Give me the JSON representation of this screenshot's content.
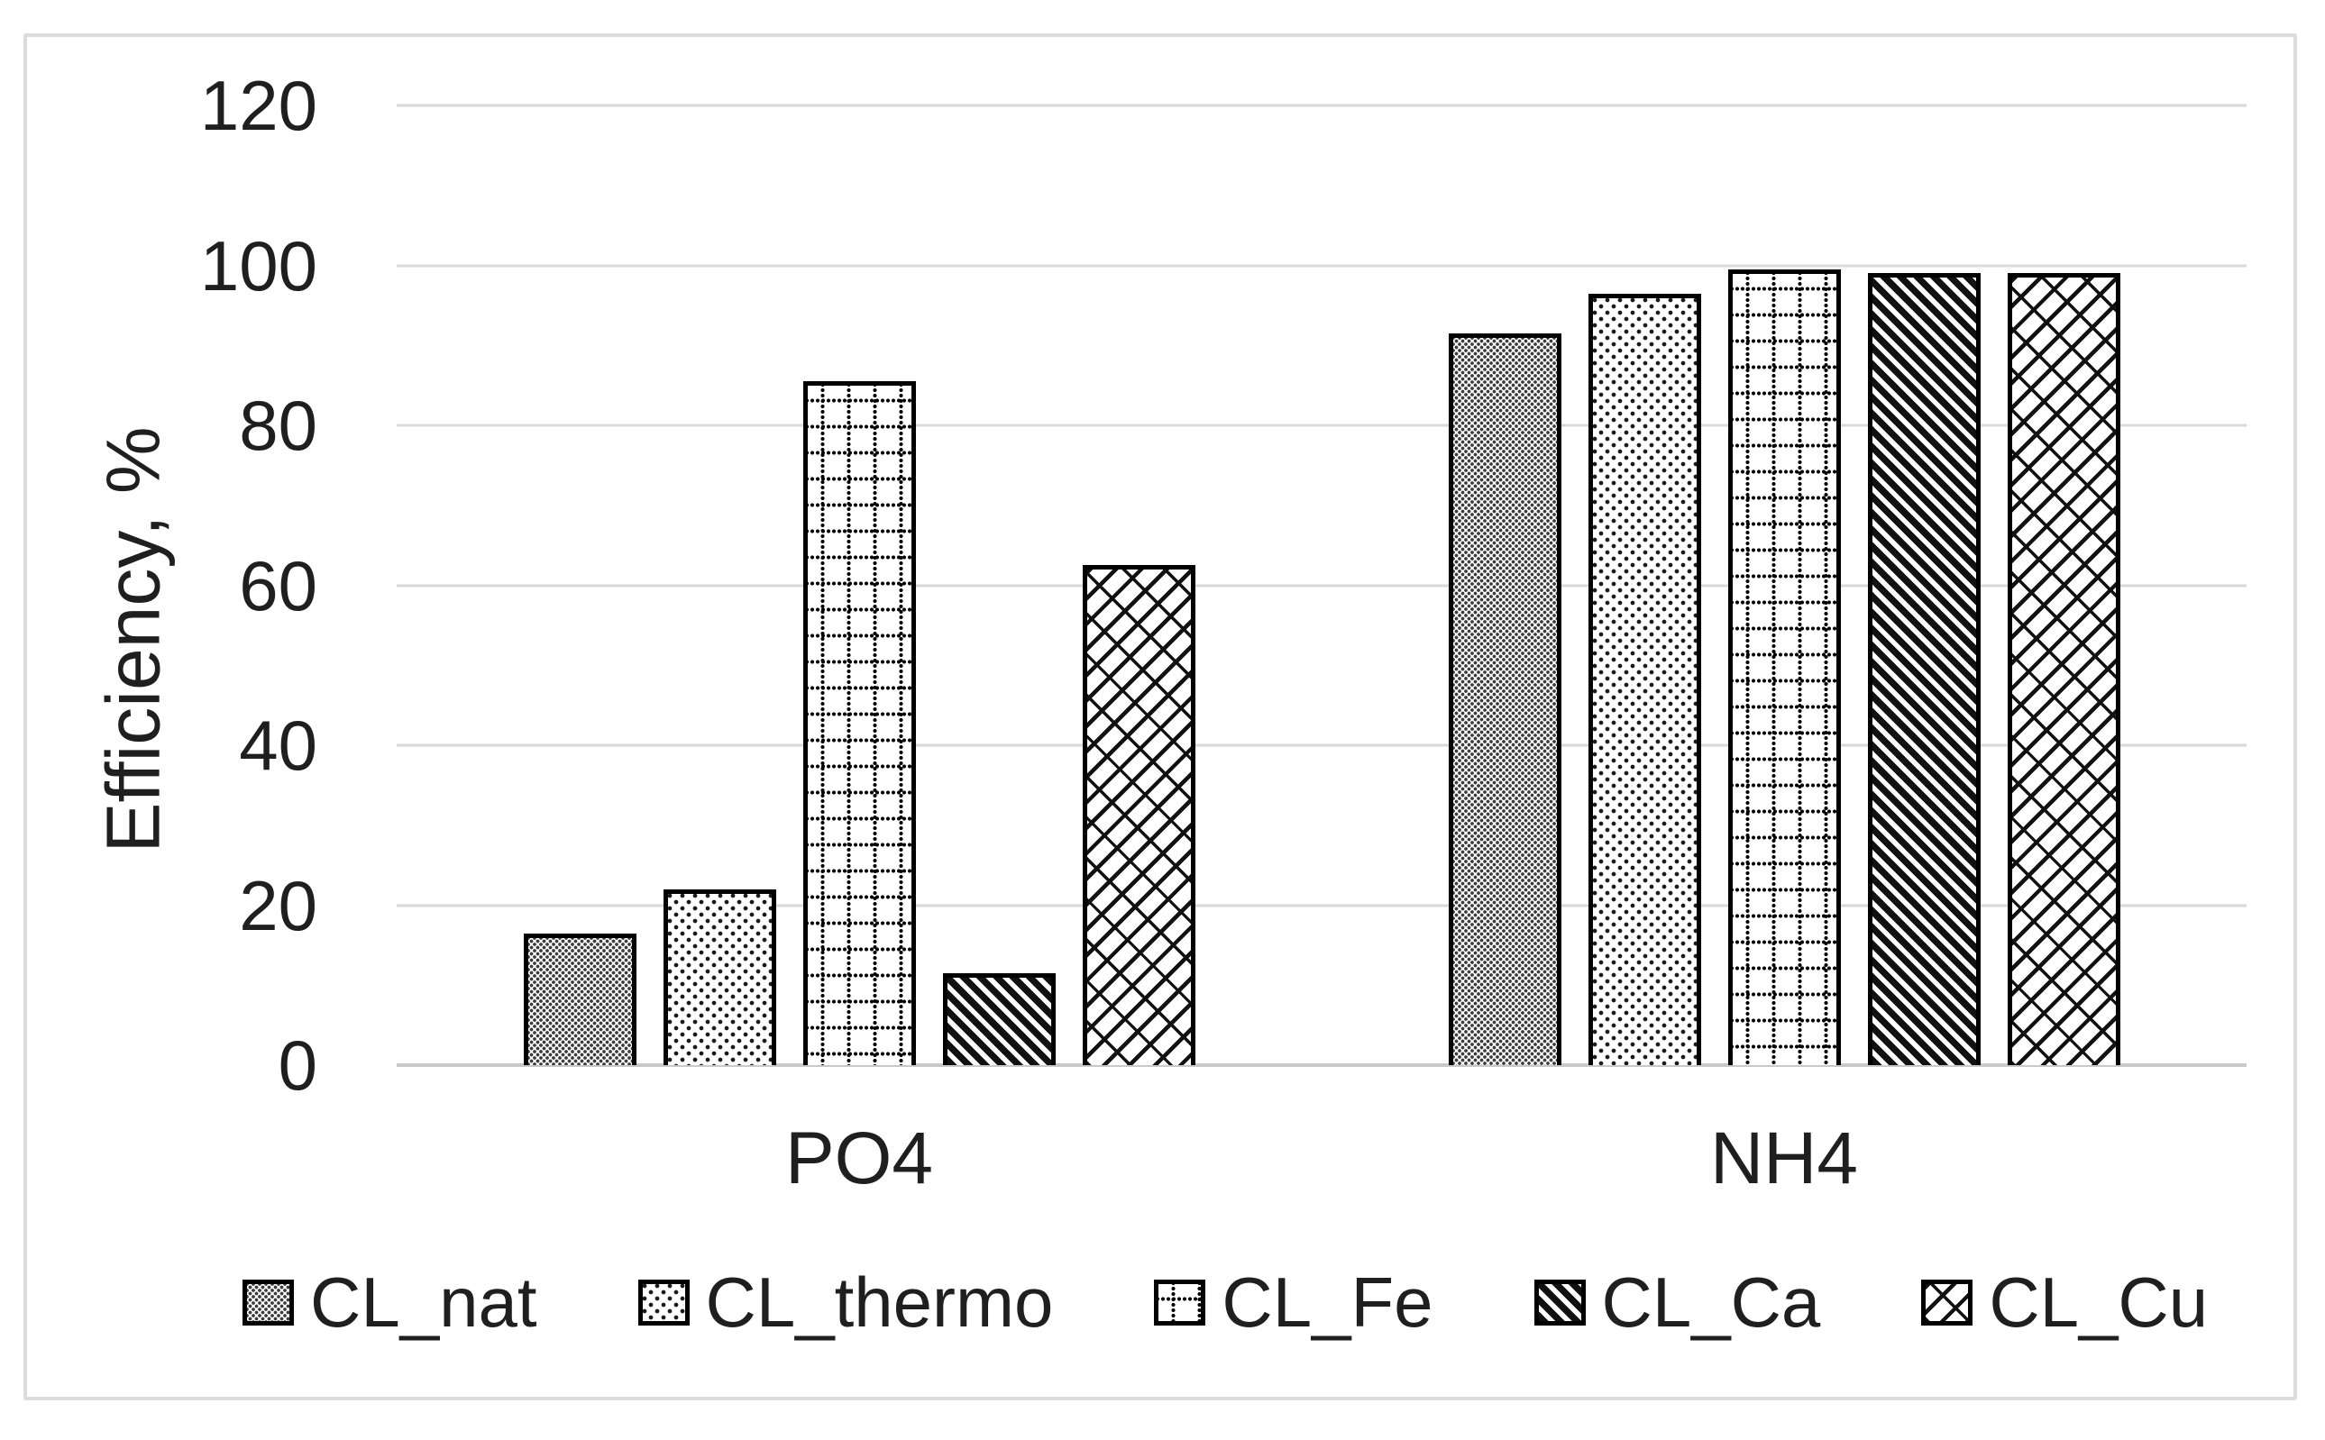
{
  "colors": {
    "background": "#ffffff",
    "frame_border": "#dcdcdc",
    "gridline": "#d9d9d9",
    "axis_line": "#c9c9c9",
    "text": "#1f1f1f",
    "bar_border": "#000000",
    "pattern_ink": "#111111"
  },
  "chart_data": {
    "type": "bar",
    "title": "",
    "xlabel": "",
    "ylabel": "Efficiency, %",
    "ylim": [
      0,
      120
    ],
    "yticks": [
      0,
      20,
      40,
      60,
      80,
      100,
      120
    ],
    "grid": true,
    "legend_position": "bottom",
    "categories": [
      "PO4",
      "NH4"
    ],
    "series": [
      {
        "name": "CL_nat",
        "pattern": "dense-dot-grid",
        "values": [
          16.5,
          91.5
        ]
      },
      {
        "name": "CL_thermo",
        "pattern": "sparse-dots",
        "values": [
          22,
          96.5
        ]
      },
      {
        "name": "CL_Fe",
        "pattern": "dotted-grid",
        "values": [
          85.5,
          99.5
        ]
      },
      {
        "name": "CL_Ca",
        "pattern": "diagonal-stripes",
        "values": [
          11.5,
          99
        ]
      },
      {
        "name": "CL_Cu",
        "pattern": "diagonal-brick",
        "values": [
          62.5,
          99
        ]
      }
    ]
  }
}
